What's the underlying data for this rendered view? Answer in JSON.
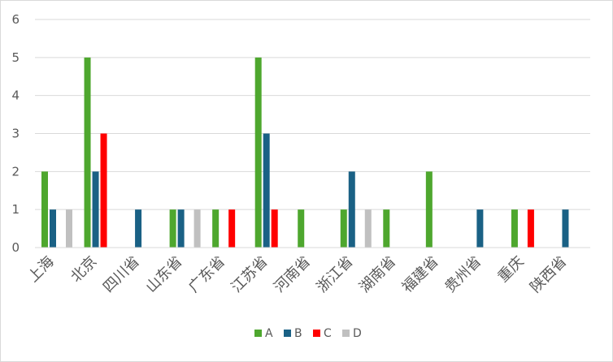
{
  "chart_data": {
    "type": "bar",
    "categories": [
      "上海",
      "北京",
      "四川省",
      "山东省",
      "广东省",
      "江苏省",
      "河南省",
      "浙江省",
      "湖南省",
      "福建省",
      "贵州省",
      "重庆",
      "陕西省"
    ],
    "series": [
      {
        "name": "A",
        "color": "#4ea72e",
        "values": [
          2,
          5,
          0,
          1,
          1,
          5,
          1,
          1,
          1,
          2,
          0,
          1,
          0
        ]
      },
      {
        "name": "B",
        "color": "#1a6185",
        "values": [
          1,
          2,
          1,
          1,
          0,
          3,
          0,
          2,
          0,
          0,
          1,
          0,
          1
        ]
      },
      {
        "name": "C",
        "color": "#ff0000",
        "values": [
          0,
          3,
          0,
          0,
          1,
          1,
          0,
          0,
          0,
          0,
          0,
          1,
          0
        ]
      },
      {
        "name": "D",
        "color": "#c0c0c0",
        "values": [
          1,
          0,
          0,
          1,
          0,
          0,
          0,
          1,
          0,
          0,
          0,
          0,
          0
        ]
      }
    ],
    "ylim": [
      0,
      6
    ],
    "yticks": [
      0,
      1,
      2,
      3,
      4,
      5,
      6
    ],
    "grid": true,
    "grid_color": "#d9d9d9",
    "legend_position": "bottom",
    "title": "",
    "xlabel": "",
    "ylabel": ""
  }
}
